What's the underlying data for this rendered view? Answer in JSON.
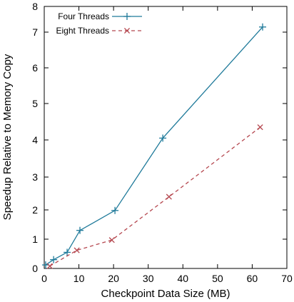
{
  "chart_data": {
    "type": "line",
    "title": "",
    "xlabel": "Checkpoint Data Size (MB)",
    "ylabel": "Speedup Relative to Memory Copy",
    "xlim": [
      0,
      70
    ],
    "ylim": [
      0,
      8
    ],
    "x_ticks": [
      0,
      10,
      20,
      30,
      40,
      50,
      60,
      70
    ],
    "y_ticks": [
      0,
      1,
      2,
      3,
      4,
      5,
      6,
      7,
      8
    ],
    "y_scale": "piecewise: equal spacing 0,0.5,1,1.5,2,2.5,3,3.5,4; then 4,6,8 at one unit each",
    "grid": false,
    "legend_position": "top-left",
    "series": [
      {
        "name": "Four Threads",
        "color": "#1f7a9a",
        "line_style": "solid",
        "marker": "plus",
        "points": [
          [
            0.4,
            0.12
          ],
          [
            2.7,
            0.3
          ],
          [
            6.6,
            0.55
          ],
          [
            10.3,
            1.3
          ],
          [
            20.4,
            1.98
          ],
          [
            34.2,
            4.05
          ],
          [
            63.0,
            7.2
          ]
        ]
      },
      {
        "name": "Eight Threads",
        "color": "#b5474f",
        "line_style": "dashed",
        "marker": "x",
        "points": [
          [
            1.6,
            0.08
          ],
          [
            9.4,
            0.62
          ],
          [
            19.5,
            0.97
          ],
          [
            36.0,
            2.4
          ],
          [
            62.3,
            4.35
          ]
        ]
      }
    ]
  }
}
